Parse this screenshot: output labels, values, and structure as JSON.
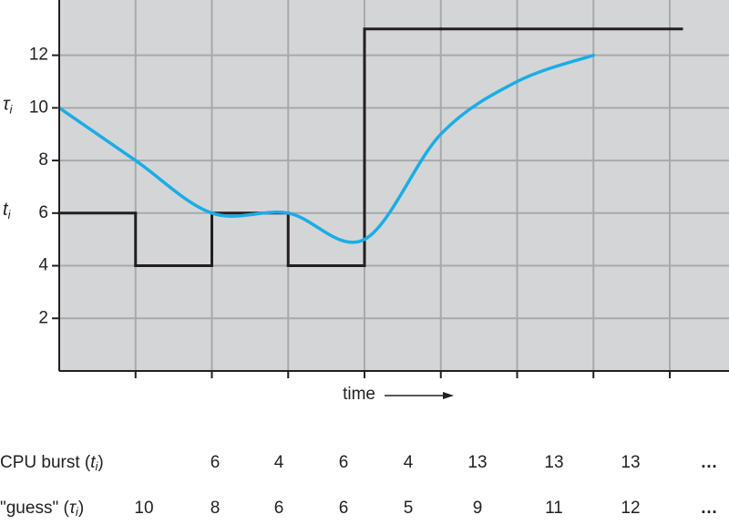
{
  "chart_data": {
    "type": "line",
    "ylim": [
      0,
      14.1
    ],
    "yticks": [
      2,
      4,
      6,
      8,
      10,
      12
    ],
    "grid": true,
    "xlabel": "time",
    "axis_annotations": [
      {
        "symbol": "τ",
        "subscript": "i",
        "value": 10
      },
      {
        "symbol": "t",
        "subscript": "i",
        "value": 6
      }
    ],
    "series": [
      {
        "name": "CPU burst",
        "symbol": "t",
        "subscript": "i",
        "style": "step",
        "color": "#231f20",
        "values": [
          6,
          4,
          6,
          4,
          13,
          13,
          13
        ]
      },
      {
        "name": "\"guess\"",
        "symbol": "τ",
        "subscript": "i",
        "style": "smooth",
        "color": "#1aade6",
        "values": [
          10,
          8,
          6,
          6,
          5,
          9,
          11,
          12
        ]
      }
    ],
    "continuation": "…"
  }
}
